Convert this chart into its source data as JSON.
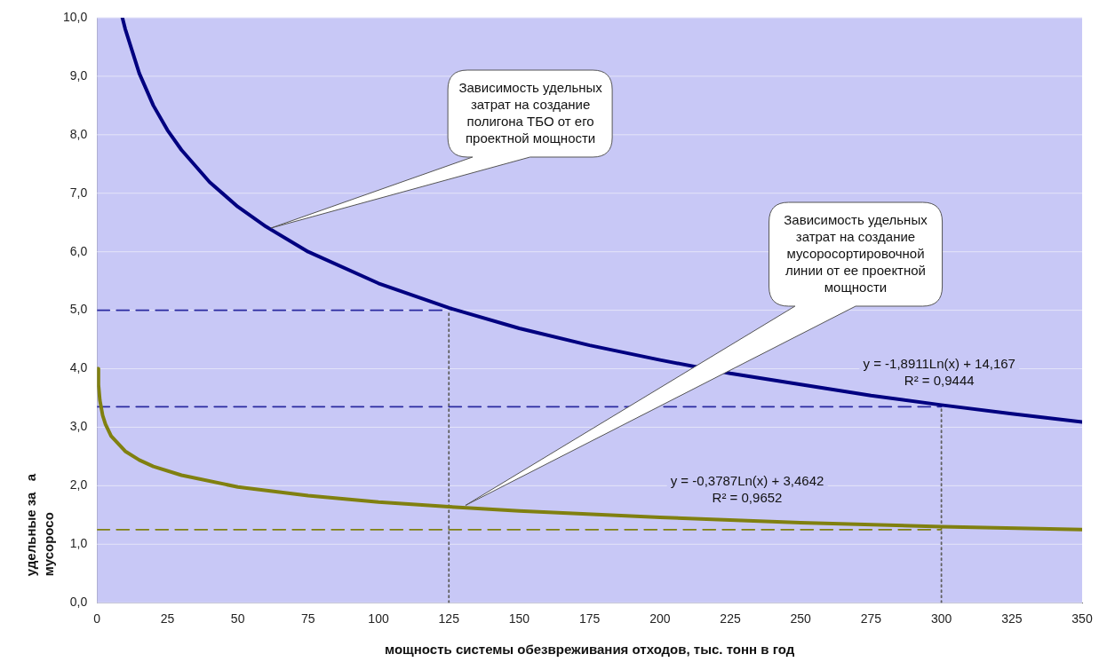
{
  "chart_data": {
    "type": "line",
    "xlabel": "мощность системы обезвреживания отходов, тыс. тонн в год",
    "ylabel": "удельные за   а\nмусоросо",
    "xlim": [
      0,
      350
    ],
    "xticks": [
      0,
      25,
      50,
      75,
      100,
      125,
      150,
      175,
      200,
      225,
      250,
      275,
      300,
      325,
      350
    ],
    "ylim": [
      0,
      10
    ],
    "yticks": [
      {
        "value": 0,
        "label": "0,0"
      },
      {
        "value": 1,
        "label": "1,0"
      },
      {
        "value": 2,
        "label": "2,0"
      },
      {
        "value": 3,
        "label": "3,0"
      },
      {
        "value": 4,
        "label": "4,0"
      },
      {
        "value": 5,
        "label": "5,0"
      },
      {
        "value": 6,
        "label": "6,0"
      },
      {
        "value": 7,
        "label": "7,0"
      },
      {
        "value": 8,
        "label": "8,0"
      },
      {
        "value": 9,
        "label": "9,0"
      },
      {
        "value": 10,
        "label": "10,0"
      }
    ],
    "grid": "y",
    "legend": false,
    "marker": "none",
    "series": [
      {
        "color": "#000080",
        "line_style": "solid",
        "x": [
          9,
          10,
          15,
          20,
          25,
          30,
          40,
          50,
          60,
          75,
          100,
          125,
          150,
          175,
          200,
          225,
          250,
          275,
          300,
          325,
          350
        ],
        "values": [
          10.0,
          9.81,
          9.05,
          8.5,
          8.08,
          7.74,
          7.19,
          6.77,
          6.43,
          6.0,
          5.46,
          5.04,
          4.69,
          4.4,
          4.15,
          3.92,
          3.73,
          3.54,
          3.38,
          3.23,
          3.09
        ]
      },
      {
        "color": "#808010",
        "line_style": "solid",
        "x": [
          0.3,
          0.5,
          1,
          2,
          3,
          5,
          10,
          15,
          20,
          30,
          50,
          75,
          100,
          125,
          150,
          200,
          250,
          300,
          350
        ],
        "values": [
          4.0,
          3.73,
          3.46,
          3.2,
          3.05,
          2.85,
          2.59,
          2.44,
          2.33,
          2.18,
          1.98,
          1.83,
          1.72,
          1.64,
          1.57,
          1.46,
          1.37,
          1.3,
          1.25
        ]
      },
      {
        "color": "#2a2aa0",
        "line_style": "dashed",
        "x": [
          0,
          125
        ],
        "values": [
          5.0,
          5.0
        ]
      },
      {
        "color": "#2a2aa0",
        "line_style": "dashed",
        "x": [
          0,
          300
        ],
        "values": [
          3.35,
          3.35
        ]
      },
      {
        "color": "#808010",
        "line_style": "dashed",
        "x": [
          0,
          300
        ],
        "values": [
          1.25,
          1.25
        ]
      },
      {
        "color": "#606060",
        "line_style": "dotted",
        "x": [
          125,
          125
        ],
        "values": [
          0,
          5.0
        ]
      },
      {
        "color": "#606060",
        "line_style": "dotted",
        "x": [
          300,
          300
        ],
        "values": [
          0,
          3.35
        ]
      }
    ],
    "annotations": [
      "Зависимость удельных\nзатрат на создание\nполигона ТБО от его\nпроектной мощности",
      "Зависимость удельных\nзатрат на создание\nмусоросортировочной\nлинии от ее  проектной\nмощности",
      "y = -1,8911Ln(x) + 14,167\nR² = 0,9444",
      "y = -0,3787Ln(x) + 3,4642\nR² = 0,9652"
    ]
  }
}
